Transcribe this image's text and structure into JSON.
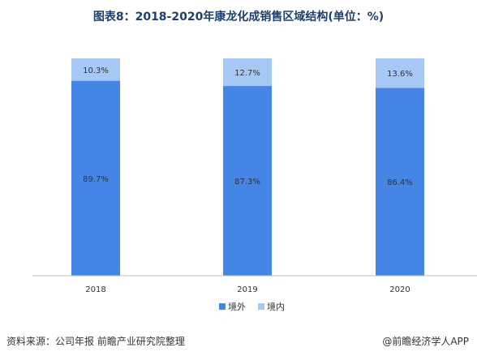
{
  "chart_data": {
    "type": "bar",
    "stacked": true,
    "title": "图表8：2018-2020年康龙化成销售区域结构(单位：%)",
    "categories": [
      "2018",
      "2019",
      "2020"
    ],
    "series": [
      {
        "name": "境外",
        "values": [
          89.7,
          87.3,
          86.4
        ],
        "labels": [
          "89.7%",
          "87.3%",
          "86.4%"
        ],
        "color": "#4585e6"
      },
      {
        "name": "境内",
        "values": [
          10.3,
          12.7,
          13.6
        ],
        "labels": [
          "10.3%",
          "12.7%",
          "13.6%"
        ],
        "color": "#a6c8f5"
      }
    ],
    "ylim": [
      0,
      100
    ],
    "grid": false,
    "legend": "bottom"
  },
  "footer": {
    "source": "资料来源：公司年报 前瞻产业研究院整理",
    "credit": "@前瞻经济学人APP"
  }
}
